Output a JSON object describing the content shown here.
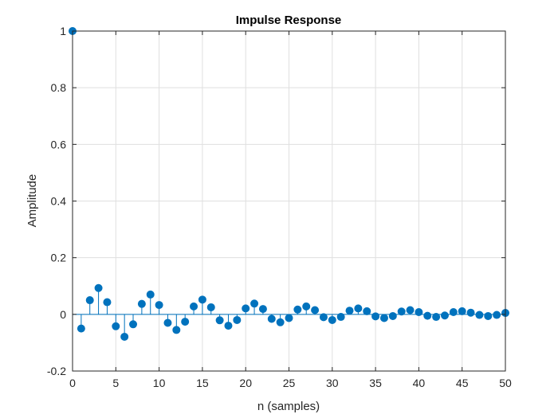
{
  "chart_data": {
    "type": "stem",
    "title": "Impulse Response",
    "xlabel": "n (samples)",
    "ylabel": "Amplitude",
    "xlim": [
      0,
      50
    ],
    "ylim": [
      -0.2,
      1
    ],
    "xticks": [
      0,
      5,
      10,
      15,
      20,
      25,
      30,
      35,
      40,
      45,
      50
    ],
    "yticks": [
      -0.2,
      0,
      0.2,
      0.4,
      0.6,
      0.8,
      1
    ],
    "ytick_labels": [
      "-0.2",
      "0",
      "0.2",
      "0.4",
      "0.6",
      "0.8",
      "1"
    ],
    "grid": true,
    "colors": {
      "series": "#0072BD",
      "grid": "#dfdfdf",
      "axis": "#262626"
    },
    "series": [
      {
        "x": [
          0,
          1,
          2,
          3,
          4,
          5,
          6,
          7,
          8,
          9,
          10,
          11,
          12,
          13,
          14,
          15,
          16,
          17,
          18,
          19,
          20,
          21,
          22,
          23,
          24,
          25,
          26,
          27,
          28,
          29,
          30,
          31,
          32,
          33,
          34,
          35,
          36,
          37,
          38,
          39,
          40,
          41,
          42,
          43,
          44,
          45,
          46,
          47,
          48,
          49,
          50
        ],
        "y": [
          1.0,
          -0.05,
          0.05,
          0.093,
          0.043,
          -0.042,
          -0.079,
          -0.035,
          0.037,
          0.07,
          0.033,
          -0.03,
          -0.055,
          -0.026,
          0.028,
          0.052,
          0.025,
          -0.021,
          -0.04,
          -0.02,
          0.021,
          0.038,
          0.019,
          -0.016,
          -0.028,
          -0.013,
          0.017,
          0.028,
          0.015,
          -0.01,
          -0.02,
          -0.009,
          0.013,
          0.021,
          0.011,
          -0.007,
          -0.013,
          -0.006,
          0.01,
          0.015,
          0.008,
          -0.005,
          -0.009,
          -0.004,
          0.008,
          0.011,
          0.006,
          -0.002,
          -0.006,
          -0.002,
          0.005
        ]
      }
    ]
  }
}
